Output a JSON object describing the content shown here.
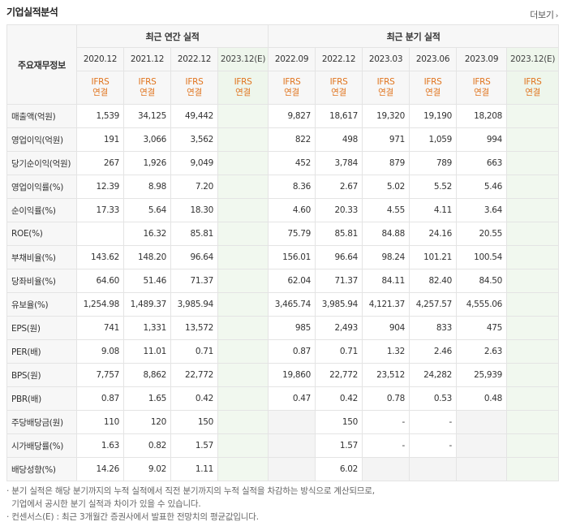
{
  "header": {
    "title": "기업실적분석",
    "more_label": "더보기"
  },
  "table": {
    "label_header": "주요재무정보",
    "annual_group": "최근 연간 실적",
    "quarter_group": "최근 분기 실적",
    "annual_periods": [
      "2020.12",
      "2021.12",
      "2022.12",
      "2023.12(E)"
    ],
    "quarter_periods": [
      "2022.09",
      "2022.12",
      "2023.03",
      "2023.06",
      "2023.09",
      "2023.12(E)"
    ],
    "ifrs_line1": "IFRS",
    "ifrs_line2": "연결",
    "rows": [
      {
        "label": "매출액(억원)",
        "annual": [
          "1,539",
          "34,125",
          "49,442",
          ""
        ],
        "quarter": [
          "9,827",
          "18,617",
          "19,320",
          "19,190",
          "18,208",
          ""
        ]
      },
      {
        "label": "영업이익(억원)",
        "annual": [
          "191",
          "3,066",
          "3,562",
          ""
        ],
        "quarter": [
          "822",
          "498",
          "971",
          "1,059",
          "994",
          ""
        ]
      },
      {
        "label": "당기순이익(억원)",
        "annual": [
          "267",
          "1,926",
          "9,049",
          ""
        ],
        "quarter": [
          "452",
          "3,784",
          "879",
          "789",
          "663",
          ""
        ]
      },
      {
        "label": "영업이익률(%)",
        "annual": [
          "12.39",
          "8.98",
          "7.20",
          ""
        ],
        "quarter": [
          "8.36",
          "2.67",
          "5.02",
          "5.52",
          "5.46",
          ""
        ]
      },
      {
        "label": "순이익률(%)",
        "annual": [
          "17.33",
          "5.64",
          "18.30",
          ""
        ],
        "quarter": [
          "4.60",
          "20.33",
          "4.55",
          "4.11",
          "3.64",
          ""
        ]
      },
      {
        "label": "ROE(%)",
        "annual": [
          "",
          "16.32",
          "85.81",
          ""
        ],
        "quarter": [
          "75.79",
          "85.81",
          "84.88",
          "24.16",
          "20.55",
          ""
        ]
      },
      {
        "label": "부채비율(%)",
        "annual": [
          "143.62",
          "148.20",
          "96.64",
          ""
        ],
        "quarter": [
          "156.01",
          "96.64",
          "98.24",
          "101.21",
          "100.54",
          ""
        ]
      },
      {
        "label": "당좌비율(%)",
        "annual": [
          "64.60",
          "51.46",
          "71.37",
          ""
        ],
        "quarter": [
          "62.04",
          "71.37",
          "84.11",
          "82.40",
          "84.50",
          ""
        ]
      },
      {
        "label": "유보율(%)",
        "annual": [
          "1,254.98",
          "1,489.37",
          "3,985.94",
          ""
        ],
        "quarter": [
          "3,465.74",
          "3,985.94",
          "4,121.37",
          "4,257.57",
          "4,555.06",
          ""
        ]
      },
      {
        "label": "EPS(원)",
        "annual": [
          "741",
          "1,331",
          "13,572",
          ""
        ],
        "quarter": [
          "985",
          "2,493",
          "904",
          "833",
          "475",
          ""
        ]
      },
      {
        "label": "PER(배)",
        "annual": [
          "9.08",
          "11.01",
          "0.71",
          ""
        ],
        "quarter": [
          "0.87",
          "0.71",
          "1.32",
          "2.46",
          "2.63",
          ""
        ]
      },
      {
        "label": "BPS(원)",
        "annual": [
          "7,757",
          "8,862",
          "22,772",
          ""
        ],
        "quarter": [
          "19,860",
          "22,772",
          "23,512",
          "24,282",
          "25,939",
          ""
        ]
      },
      {
        "label": "PBR(배)",
        "annual": [
          "0.87",
          "1.65",
          "0.42",
          ""
        ],
        "quarter": [
          "0.47",
          "0.42",
          "0.78",
          "0.53",
          "0.48",
          ""
        ]
      },
      {
        "label": "주당배당금(원)",
        "annual": [
          "110",
          "120",
          "150",
          ""
        ],
        "quarter": [
          "",
          "150",
          "-",
          "-",
          "",
          ""
        ]
      },
      {
        "label": "시가배당률(%)",
        "annual": [
          "1.63",
          "0.82",
          "1.57",
          ""
        ],
        "quarter": [
          "",
          "1.57",
          "-",
          "-",
          "",
          ""
        ]
      },
      {
        "label": "배당성향(%)",
        "annual": [
          "14.26",
          "9.02",
          "1.11",
          ""
        ],
        "quarter": [
          "",
          "6.02",
          "",
          "",
          "",
          ""
        ]
      }
    ]
  },
  "notes": [
    "분기 실적은 해당 분기까지의 누적 실적에서 직전 분기까지의 누적 실적을 차감하는 방식으로 계산되므로,",
    "기업에서 공시한 분기 실적과 차이가 있을 수 있습니다.",
    "컨센서스(E) : 최근 3개월간 증권사에서 발표한 전망치의 평균값입니다."
  ]
}
